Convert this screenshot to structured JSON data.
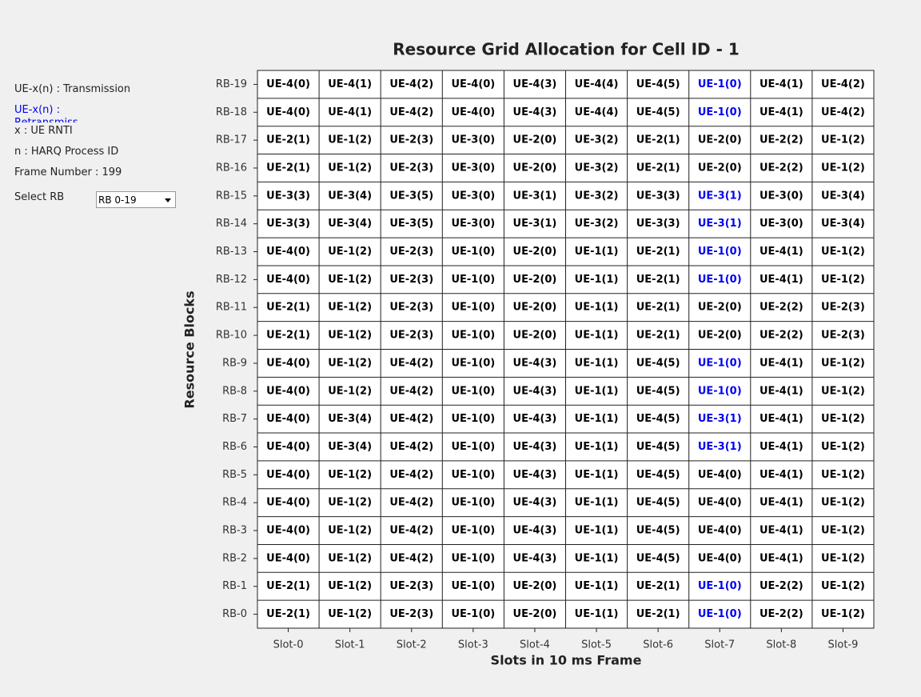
{
  "legend": {
    "items": [
      {
        "text": "UE-x(n) : Transmission"
      },
      {
        "text": "UE-x(n) : Retransmission",
        "color": "#0000ee"
      },
      {
        "text": "x : UE RNTI"
      },
      {
        "text": "n : HARQ Process ID"
      },
      {
        "text": "Frame Number : 199"
      }
    ],
    "select_label": "Select RB",
    "select_value": "RB 0-19"
  },
  "plot": {
    "title": "Resource Grid Allocation for Cell ID - 1",
    "x_label": "Slots in 10 ms Frame",
    "y_label": "Resource Blocks",
    "columns": [
      "Slot-0",
      "Slot-1",
      "Slot-2",
      "Slot-3",
      "Slot-4",
      "Slot-5",
      "Slot-6",
      "Slot-7",
      "Slot-8",
      "Slot-9"
    ],
    "rows": [
      {
        "label": "RB-19",
        "cells": [
          {
            "text": "UE-4(0)"
          },
          {
            "text": "UE-4(1)"
          },
          {
            "text": "UE-4(2)"
          },
          {
            "text": "UE-4(0)"
          },
          {
            "text": "UE-4(3)"
          },
          {
            "text": "UE-4(4)"
          },
          {
            "text": "UE-4(5)"
          },
          {
            "text": "UE-1(0)",
            "color": "#0000ee"
          },
          {
            "text": "UE-4(1)"
          },
          {
            "text": "UE-4(2)"
          }
        ]
      },
      {
        "label": "RB-18",
        "cells": [
          {
            "text": "UE-4(0)"
          },
          {
            "text": "UE-4(1)"
          },
          {
            "text": "UE-4(2)"
          },
          {
            "text": "UE-4(0)"
          },
          {
            "text": "UE-4(3)"
          },
          {
            "text": "UE-4(4)"
          },
          {
            "text": "UE-4(5)"
          },
          {
            "text": "UE-1(0)",
            "color": "#0000ee"
          },
          {
            "text": "UE-4(1)"
          },
          {
            "text": "UE-4(2)"
          }
        ]
      },
      {
        "label": "RB-17",
        "cells": [
          {
            "text": "UE-2(1)"
          },
          {
            "text": "UE-1(2)"
          },
          {
            "text": "UE-2(3)"
          },
          {
            "text": "UE-3(0)"
          },
          {
            "text": "UE-2(0)"
          },
          {
            "text": "UE-3(2)"
          },
          {
            "text": "UE-2(1)"
          },
          {
            "text": "UE-2(0)"
          },
          {
            "text": "UE-2(2)"
          },
          {
            "text": "UE-1(2)"
          }
        ]
      },
      {
        "label": "RB-16",
        "cells": [
          {
            "text": "UE-2(1)"
          },
          {
            "text": "UE-1(2)"
          },
          {
            "text": "UE-2(3)"
          },
          {
            "text": "UE-3(0)"
          },
          {
            "text": "UE-2(0)"
          },
          {
            "text": "UE-3(2)"
          },
          {
            "text": "UE-2(1)"
          },
          {
            "text": "UE-2(0)"
          },
          {
            "text": "UE-2(2)"
          },
          {
            "text": "UE-1(2)"
          }
        ]
      },
      {
        "label": "RB-15",
        "cells": [
          {
            "text": "UE-3(3)"
          },
          {
            "text": "UE-3(4)"
          },
          {
            "text": "UE-3(5)"
          },
          {
            "text": "UE-3(0)"
          },
          {
            "text": "UE-3(1)"
          },
          {
            "text": "UE-3(2)"
          },
          {
            "text": "UE-3(3)"
          },
          {
            "text": "UE-3(1)",
            "color": "#0000ee"
          },
          {
            "text": "UE-3(0)"
          },
          {
            "text": "UE-3(4)"
          }
        ]
      },
      {
        "label": "RB-14",
        "cells": [
          {
            "text": "UE-3(3)"
          },
          {
            "text": "UE-3(4)"
          },
          {
            "text": "UE-3(5)"
          },
          {
            "text": "UE-3(0)"
          },
          {
            "text": "UE-3(1)"
          },
          {
            "text": "UE-3(2)"
          },
          {
            "text": "UE-3(3)"
          },
          {
            "text": "UE-3(1)",
            "color": "#0000ee"
          },
          {
            "text": "UE-3(0)"
          },
          {
            "text": "UE-3(4)"
          }
        ]
      },
      {
        "label": "RB-13",
        "cells": [
          {
            "text": "UE-4(0)"
          },
          {
            "text": "UE-1(2)"
          },
          {
            "text": "UE-2(3)"
          },
          {
            "text": "UE-1(0)"
          },
          {
            "text": "UE-2(0)"
          },
          {
            "text": "UE-1(1)"
          },
          {
            "text": "UE-2(1)"
          },
          {
            "text": "UE-1(0)",
            "color": "#0000ee"
          },
          {
            "text": "UE-4(1)"
          },
          {
            "text": "UE-1(2)"
          }
        ]
      },
      {
        "label": "RB-12",
        "cells": [
          {
            "text": "UE-4(0)"
          },
          {
            "text": "UE-1(2)"
          },
          {
            "text": "UE-2(3)"
          },
          {
            "text": "UE-1(0)"
          },
          {
            "text": "UE-2(0)"
          },
          {
            "text": "UE-1(1)"
          },
          {
            "text": "UE-2(1)"
          },
          {
            "text": "UE-1(0)",
            "color": "#0000ee"
          },
          {
            "text": "UE-4(1)"
          },
          {
            "text": "UE-1(2)"
          }
        ]
      },
      {
        "label": "RB-11",
        "cells": [
          {
            "text": "UE-2(1)"
          },
          {
            "text": "UE-1(2)"
          },
          {
            "text": "UE-2(3)"
          },
          {
            "text": "UE-1(0)"
          },
          {
            "text": "UE-2(0)"
          },
          {
            "text": "UE-1(1)"
          },
          {
            "text": "UE-2(1)"
          },
          {
            "text": "UE-2(0)"
          },
          {
            "text": "UE-2(2)"
          },
          {
            "text": "UE-2(3)"
          }
        ]
      },
      {
        "label": "RB-10",
        "cells": [
          {
            "text": "UE-2(1)"
          },
          {
            "text": "UE-1(2)"
          },
          {
            "text": "UE-2(3)"
          },
          {
            "text": "UE-1(0)"
          },
          {
            "text": "UE-2(0)"
          },
          {
            "text": "UE-1(1)"
          },
          {
            "text": "UE-2(1)"
          },
          {
            "text": "UE-2(0)"
          },
          {
            "text": "UE-2(2)"
          },
          {
            "text": "UE-2(3)"
          }
        ]
      },
      {
        "label": "RB-9",
        "cells": [
          {
            "text": "UE-4(0)"
          },
          {
            "text": "UE-1(2)"
          },
          {
            "text": "UE-4(2)"
          },
          {
            "text": "UE-1(0)"
          },
          {
            "text": "UE-4(3)"
          },
          {
            "text": "UE-1(1)"
          },
          {
            "text": "UE-4(5)"
          },
          {
            "text": "UE-1(0)",
            "color": "#0000ee"
          },
          {
            "text": "UE-4(1)"
          },
          {
            "text": "UE-1(2)"
          }
        ]
      },
      {
        "label": "RB-8",
        "cells": [
          {
            "text": "UE-4(0)"
          },
          {
            "text": "UE-1(2)"
          },
          {
            "text": "UE-4(2)"
          },
          {
            "text": "UE-1(0)"
          },
          {
            "text": "UE-4(3)"
          },
          {
            "text": "UE-1(1)"
          },
          {
            "text": "UE-4(5)"
          },
          {
            "text": "UE-1(0)",
            "color": "#0000ee"
          },
          {
            "text": "UE-4(1)"
          },
          {
            "text": "UE-1(2)"
          }
        ]
      },
      {
        "label": "RB-7",
        "cells": [
          {
            "text": "UE-4(0)"
          },
          {
            "text": "UE-3(4)"
          },
          {
            "text": "UE-4(2)"
          },
          {
            "text": "UE-1(0)"
          },
          {
            "text": "UE-4(3)"
          },
          {
            "text": "UE-1(1)"
          },
          {
            "text": "UE-4(5)"
          },
          {
            "text": "UE-3(1)",
            "color": "#0000ee"
          },
          {
            "text": "UE-4(1)"
          },
          {
            "text": "UE-1(2)"
          }
        ]
      },
      {
        "label": "RB-6",
        "cells": [
          {
            "text": "UE-4(0)"
          },
          {
            "text": "UE-3(4)"
          },
          {
            "text": "UE-4(2)"
          },
          {
            "text": "UE-1(0)"
          },
          {
            "text": "UE-4(3)"
          },
          {
            "text": "UE-1(1)"
          },
          {
            "text": "UE-4(5)"
          },
          {
            "text": "UE-3(1)",
            "color": "#0000ee"
          },
          {
            "text": "UE-4(1)"
          },
          {
            "text": "UE-1(2)"
          }
        ]
      },
      {
        "label": "RB-5",
        "cells": [
          {
            "text": "UE-4(0)"
          },
          {
            "text": "UE-1(2)"
          },
          {
            "text": "UE-4(2)"
          },
          {
            "text": "UE-1(0)"
          },
          {
            "text": "UE-4(3)"
          },
          {
            "text": "UE-1(1)"
          },
          {
            "text": "UE-4(5)"
          },
          {
            "text": "UE-4(0)"
          },
          {
            "text": "UE-4(1)"
          },
          {
            "text": "UE-1(2)"
          }
        ]
      },
      {
        "label": "RB-4",
        "cells": [
          {
            "text": "UE-4(0)"
          },
          {
            "text": "UE-1(2)"
          },
          {
            "text": "UE-4(2)"
          },
          {
            "text": "UE-1(0)"
          },
          {
            "text": "UE-4(3)"
          },
          {
            "text": "UE-1(1)"
          },
          {
            "text": "UE-4(5)"
          },
          {
            "text": "UE-4(0)"
          },
          {
            "text": "UE-4(1)"
          },
          {
            "text": "UE-1(2)"
          }
        ]
      },
      {
        "label": "RB-3",
        "cells": [
          {
            "text": "UE-4(0)"
          },
          {
            "text": "UE-1(2)"
          },
          {
            "text": "UE-4(2)"
          },
          {
            "text": "UE-1(0)"
          },
          {
            "text": "UE-4(3)"
          },
          {
            "text": "UE-1(1)"
          },
          {
            "text": "UE-4(5)"
          },
          {
            "text": "UE-4(0)"
          },
          {
            "text": "UE-4(1)"
          },
          {
            "text": "UE-1(2)"
          }
        ]
      },
      {
        "label": "RB-2",
        "cells": [
          {
            "text": "UE-4(0)"
          },
          {
            "text": "UE-1(2)"
          },
          {
            "text": "UE-4(2)"
          },
          {
            "text": "UE-1(0)"
          },
          {
            "text": "UE-4(3)"
          },
          {
            "text": "UE-1(1)"
          },
          {
            "text": "UE-4(5)"
          },
          {
            "text": "UE-4(0)"
          },
          {
            "text": "UE-4(1)"
          },
          {
            "text": "UE-1(2)"
          }
        ]
      },
      {
        "label": "RB-1",
        "cells": [
          {
            "text": "UE-2(1)"
          },
          {
            "text": "UE-1(2)"
          },
          {
            "text": "UE-2(3)"
          },
          {
            "text": "UE-1(0)"
          },
          {
            "text": "UE-2(0)"
          },
          {
            "text": "UE-1(1)"
          },
          {
            "text": "UE-2(1)"
          },
          {
            "text": "UE-1(0)",
            "color": "#0000ee"
          },
          {
            "text": "UE-2(2)"
          },
          {
            "text": "UE-1(2)"
          }
        ]
      },
      {
        "label": "RB-0",
        "cells": [
          {
            "text": "UE-2(1)"
          },
          {
            "text": "UE-1(2)"
          },
          {
            "text": "UE-2(3)"
          },
          {
            "text": "UE-1(0)"
          },
          {
            "text": "UE-2(0)"
          },
          {
            "text": "UE-1(1)"
          },
          {
            "text": "UE-2(1)"
          },
          {
            "text": "UE-1(0)",
            "color": "#0000ee"
          },
          {
            "text": "UE-2(2)"
          },
          {
            "text": "UE-1(2)"
          }
        ]
      }
    ]
  }
}
